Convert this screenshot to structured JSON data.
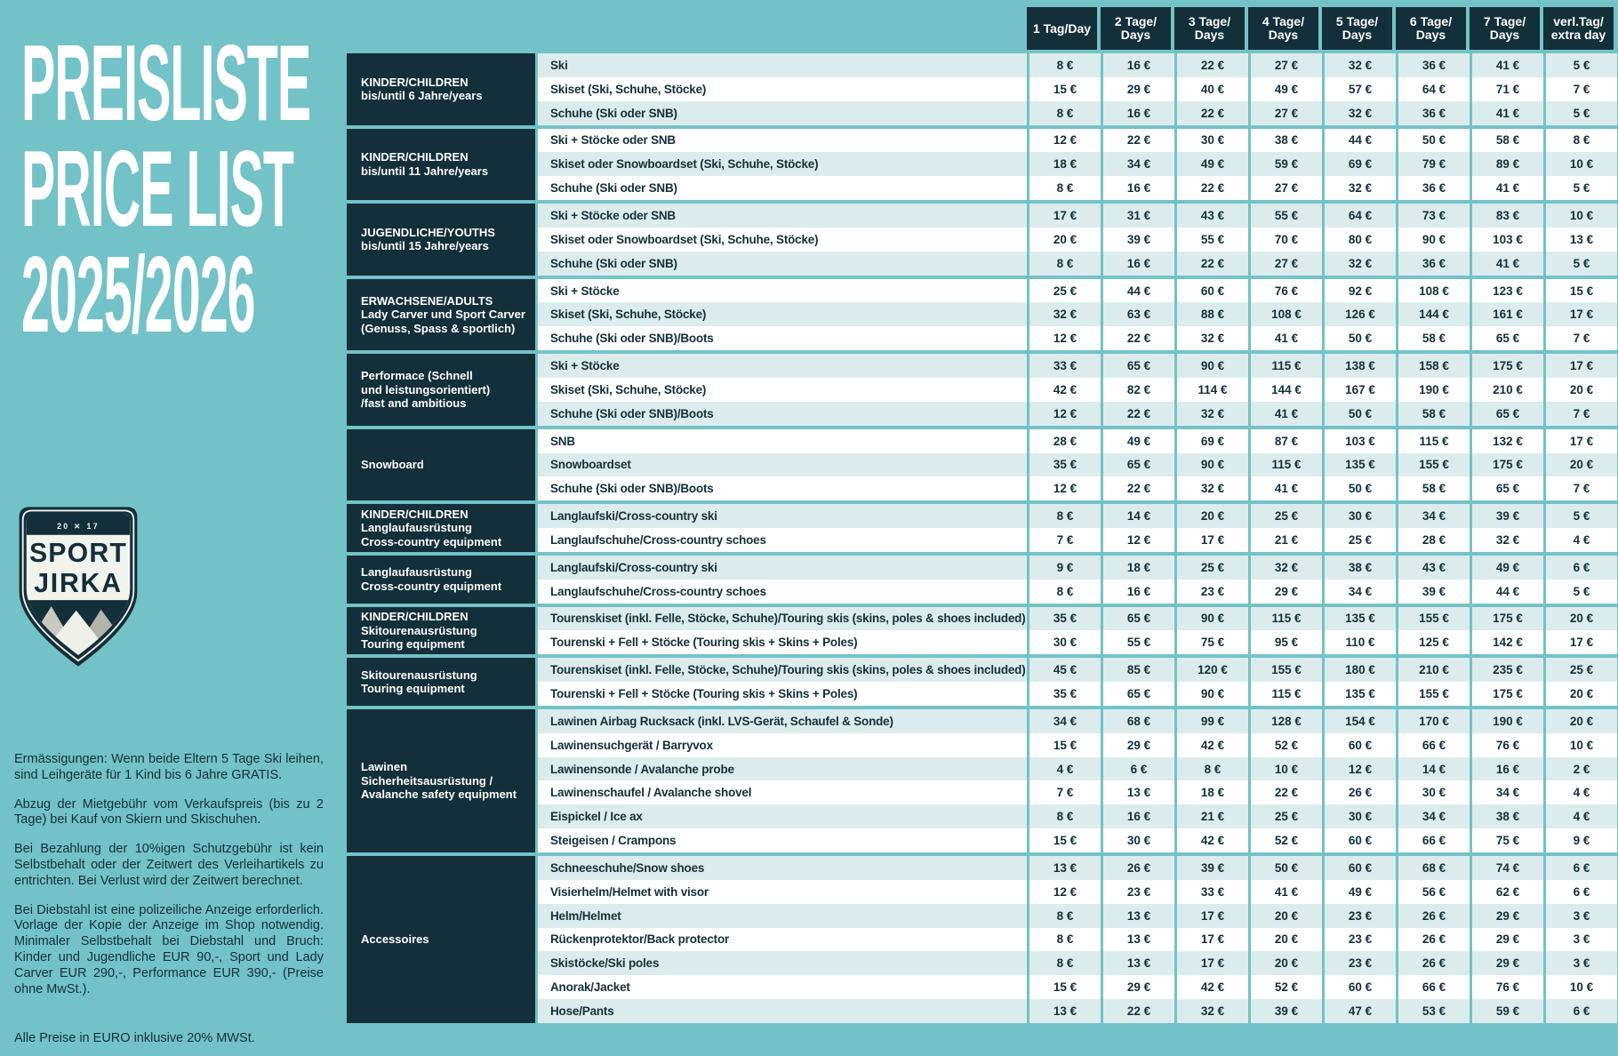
{
  "title": {
    "line1": "PREISLISTE",
    "line2": "PRICE LIST",
    "line3": "2025/2026"
  },
  "logo": {
    "badge_top": "20 ✕ 17",
    "brand_line1": "SPORT",
    "brand_line2": "JIRKA"
  },
  "notes": [
    "Ermässigungen: Wenn beide Eltern 5 Tage Ski leihen, sind Leihgeräte für 1 Kind bis 6 Jahre GRATIS.",
    "Abzug der Mietgebühr vom Verkaufspreis (bis zu 2 Tage) bei Kauf von Skiern und Skischuhen.",
    "Bei Bezahlung der 10%igen Schutzgebühr ist kein Selbstbehalt oder der Zeitwert des Verleihartikels zu entrichten. Bei Verlust wird der Zeitwert berechnet.",
    "Bei Diebstahl ist eine polizeiliche Anzeige erforderlich. Vorlage der Kopie der Anzeige im Shop notwendig. Minimaler Selbstbehalt bei Diebstahl und Bruch: Kinder und Jugendliche EUR 90,-, Sport und Lady Carver EUR 290,-, Performance EUR 390,- (Preise ohne MwSt.)."
  ],
  "footer_note": "Alle Preise in EURO inklusive 20% MWSt.",
  "colors": {
    "background": "#73c2c8",
    "dark": "#132f39",
    "row_light": "#dceced",
    "row_white": "#ffffff"
  },
  "table": {
    "column_headers": [
      "1 Tag/Day",
      "2 Tage/\nDays",
      "3 Tage/\nDays",
      "4 Tage/\nDays",
      "5 Tage/\nDays",
      "6 Tage/\nDays",
      "7 Tage/\nDays",
      "verl.Tag/\nextra day"
    ],
    "sections": [
      {
        "category": "KINDER/CHILDREN\nbis/until 6 Jahre/years",
        "rows": [
          {
            "item": "Ski",
            "prices": [
              "8 €",
              "16 €",
              "22 €",
              "27 €",
              "32 €",
              "36 €",
              "41 €",
              "5 €"
            ]
          },
          {
            "item": "Skiset (Ski, Schuhe, Stöcke)",
            "prices": [
              "15 €",
              "29 €",
              "40 €",
              "49 €",
              "57 €",
              "64 €",
              "71 €",
              "7 €"
            ]
          },
          {
            "item": "Schuhe (Ski oder SNB)",
            "prices": [
              "8 €",
              "16 €",
              "22 €",
              "27 €",
              "32 €",
              "36 €",
              "41 €",
              "5 €"
            ]
          }
        ]
      },
      {
        "category": "KINDER/CHILDREN\nbis/until 11 Jahre/years",
        "rows": [
          {
            "item": "Ski + Stöcke oder SNB",
            "prices": [
              "12 €",
              "22 €",
              "30 €",
              "38 €",
              "44 €",
              "50 €",
              "58 €",
              "8 €"
            ]
          },
          {
            "item": "Skiset oder Snowboardset (Ski, Schuhe, Stöcke)",
            "prices": [
              "18 €",
              "34 €",
              "49 €",
              "59 €",
              "69 €",
              "79 €",
              "89 €",
              "10 €"
            ]
          },
          {
            "item": "Schuhe (Ski oder SNB)",
            "prices": [
              "8 €",
              "16 €",
              "22 €",
              "27 €",
              "32 €",
              "36 €",
              "41 €",
              "5 €"
            ]
          }
        ]
      },
      {
        "category": "JUGENDLICHE/YOUTHS\nbis/until 15 Jahre/years",
        "rows": [
          {
            "item": "Ski + Stöcke oder SNB",
            "prices": [
              "17 €",
              "31 €",
              "43 €",
              "55 €",
              "64 €",
              "73 €",
              "83 €",
              "10 €"
            ]
          },
          {
            "item": "Skiset oder Snowboardset (Ski, Schuhe, Stöcke)",
            "prices": [
              "20 €",
              "39 €",
              "55 €",
              "70 €",
              "80 €",
              "90 €",
              "103 €",
              "13 €"
            ]
          },
          {
            "item": "Schuhe (Ski oder SNB)",
            "prices": [
              "8 €",
              "16 €",
              "22 €",
              "27 €",
              "32 €",
              "36 €",
              "41 €",
              "5 €"
            ]
          }
        ]
      },
      {
        "category": "ERWACHSENE/ADULTS\nLady Carver und Sport Carver\n(Genuss, Spass & sportlich)",
        "rows": [
          {
            "item": "Ski + Stöcke",
            "prices": [
              "25 €",
              "44 €",
              "60 €",
              "76 €",
              "92 €",
              "108 €",
              "123 €",
              "15 €"
            ]
          },
          {
            "item": "Skiset (Ski, Schuhe, Stöcke)",
            "prices": [
              "32 €",
              "63 €",
              "88 €",
              "108 €",
              "126 €",
              "144 €",
              "161 €",
              "17 €"
            ]
          },
          {
            "item": "Schuhe (Ski oder SNB)/Boots",
            "prices": [
              "12 €",
              "22 €",
              "32 €",
              "41 €",
              "50 €",
              "58 €",
              "65 €",
              "7 €"
            ]
          }
        ]
      },
      {
        "category": "Performace (Schnell\nund leistungsorientiert)\n/fast and ambitious",
        "rows": [
          {
            "item": "Ski + Stöcke",
            "prices": [
              "33 €",
              "65 €",
              "90 €",
              "115 €",
              "138 €",
              "158 €",
              "175 €",
              "17 €"
            ]
          },
          {
            "item": "Skiset (Ski, Schuhe, Stöcke)",
            "prices": [
              "42 €",
              "82 €",
              "114 €",
              "144 €",
              "167 €",
              "190 €",
              "210 €",
              "20 €"
            ]
          },
          {
            "item": "Schuhe (Ski oder SNB)/Boots",
            "prices": [
              "12 €",
              "22 €",
              "32 €",
              "41 €",
              "50 €",
              "58 €",
              "65 €",
              "7 €"
            ]
          }
        ]
      },
      {
        "category": "Snowboard",
        "rows": [
          {
            "item": "SNB",
            "prices": [
              "28 €",
              "49 €",
              "69 €",
              "87 €",
              "103 €",
              "115 €",
              "132 €",
              "17 €"
            ]
          },
          {
            "item": "Snowboardset",
            "prices": [
              "35 €",
              "65 €",
              "90 €",
              "115 €",
              "135 €",
              "155 €",
              "175 €",
              "20 €"
            ]
          },
          {
            "item": "Schuhe (Ski oder SNB)/Boots",
            "prices": [
              "12 €",
              "22 €",
              "32 €",
              "41 €",
              "50 €",
              "58 €",
              "65 €",
              "7 €"
            ]
          }
        ]
      },
      {
        "category": "KINDER/CHILDREN\nLanglaufausrüstung\nCross-country equipment",
        "rows": [
          {
            "item": "Langlaufski/Cross-country ski",
            "prices": [
              "8 €",
              "14 €",
              "20 €",
              "25 €",
              "30 €",
              "34 €",
              "39 €",
              "5 €"
            ]
          },
          {
            "item": "Langlaufschuhe/Cross-country schoes",
            "prices": [
              "7 €",
              "12 €",
              "17 €",
              "21 €",
              "25 €",
              "28 €",
              "32 €",
              "4 €"
            ]
          }
        ]
      },
      {
        "category": "Langlaufausrüstung\nCross-country equipment",
        "rows": [
          {
            "item": "Langlaufski/Cross-country ski",
            "prices": [
              "9 €",
              "18 €",
              "25 €",
              "32 €",
              "38 €",
              "43 €",
              "49 €",
              "6 €"
            ]
          },
          {
            "item": "Langlaufschuhe/Cross-country schoes",
            "prices": [
              "8 €",
              "16 €",
              "23 €",
              "29 €",
              "34 €",
              "39 €",
              "44 €",
              "5 €"
            ]
          }
        ]
      },
      {
        "category": "KINDER/CHILDREN\nSkitourenausrüstung\nTouring equipment",
        "rows": [
          {
            "item": "Tourenskiset (inkl. Felle, Stöcke, Schuhe)/Touring skis (skins, poles & shoes included)",
            "prices": [
              "35 €",
              "65 €",
              "90 €",
              "115 €",
              "135 €",
              "155 €",
              "175 €",
              "20 €"
            ]
          },
          {
            "item": "Tourenski + Fell + Stöcke (Touring skis + Skins + Poles)",
            "prices": [
              "30 €",
              "55 €",
              "75 €",
              "95 €",
              "110 €",
              "125 €",
              "142 €",
              "17 €"
            ]
          }
        ]
      },
      {
        "category": "Skitourenausrüstung\nTouring equipment",
        "rows": [
          {
            "item": "Tourenskiset (inkl. Felle, Stöcke, Schuhe)/Touring skis (skins, poles & shoes included)",
            "prices": [
              "45 €",
              "85 €",
              "120 €",
              "155 €",
              "180 €",
              "210 €",
              "235 €",
              "25 €"
            ]
          },
          {
            "item": "Tourenski + Fell + Stöcke (Touring skis + Skins + Poles)",
            "prices": [
              "35 €",
              "65 €",
              "90 €",
              "115 €",
              "135 €",
              "155 €",
              "175 €",
              "20 €"
            ]
          }
        ]
      },
      {
        "category": "Lawinen\nSicherheitsausrüstung /\nAvalanche safety equipment",
        "rows": [
          {
            "item": "Lawinen Airbag Rucksack (inkl. LVS-Gerät, Schaufel & Sonde)",
            "prices": [
              "34 €",
              "68 €",
              "99 €",
              "128 €",
              "154 €",
              "170 €",
              "190 €",
              "20 €"
            ]
          },
          {
            "item": "Lawinensuchgerät / Barryvox",
            "prices": [
              "15 €",
              "29 €",
              "42 €",
              "52 €",
              "60 €",
              "66 €",
              "76 €",
              "10 €"
            ]
          },
          {
            "item": "Lawinensonde / Avalanche probe",
            "prices": [
              "4 €",
              "6 €",
              "8 €",
              "10 €",
              "12 €",
              "14 €",
              "16 €",
              "2 €"
            ]
          },
          {
            "item": "Lawinenschaufel / Avalanche shovel",
            "prices": [
              "7 €",
              "13 €",
              "18 €",
              "22 €",
              "26 €",
              "30 €",
              "34 €",
              "4 €"
            ]
          },
          {
            "item": "Eispickel / Ice ax",
            "prices": [
              "8 €",
              "16 €",
              "21 €",
              "25 €",
              "30 €",
              "34 €",
              "38 €",
              "4 €"
            ]
          },
          {
            "item": "Steigeisen / Crampons",
            "prices": [
              "15 €",
              "30 €",
              "42 €",
              "52 €",
              "60 €",
              "66 €",
              "75 €",
              "9 €"
            ]
          }
        ]
      },
      {
        "category": "Accessoires",
        "rows": [
          {
            "item": "Schneeschuhe/Snow shoes",
            "prices": [
              "13 €",
              "26 €",
              "39 €",
              "50 €",
              "60 €",
              "68 €",
              "74 €",
              "6 €"
            ]
          },
          {
            "item": "Visierhelm/Helmet with visor",
            "prices": [
              "12 €",
              "23 €",
              "33 €",
              "41 €",
              "49 €",
              "56 €",
              "62 €",
              "6 €"
            ]
          },
          {
            "item": "Helm/Helmet",
            "prices": [
              "8 €",
              "13 €",
              "17 €",
              "20 €",
              "23 €",
              "26 €",
              "29 €",
              "3 €"
            ]
          },
          {
            "item": "Rückenprotektor/Back protector",
            "prices": [
              "8 €",
              "13 €",
              "17 €",
              "20 €",
              "23 €",
              "26 €",
              "29 €",
              "3 €"
            ]
          },
          {
            "item": "Skistöcke/Ski poles",
            "prices": [
              "8 €",
              "13 €",
              "17 €",
              "20 €",
              "23 €",
              "26 €",
              "29 €",
              "3 €"
            ]
          },
          {
            "item": "Anorak/Jacket",
            "prices": [
              "15 €",
              "29 €",
              "42 €",
              "52 €",
              "60 €",
              "66 €",
              "76 €",
              "10 €"
            ]
          },
          {
            "item": "Hose/Pants",
            "prices": [
              "13 €",
              "22 €",
              "32 €",
              "39 €",
              "47 €",
              "53 €",
              "59 €",
              "6 €"
            ]
          }
        ]
      }
    ]
  }
}
